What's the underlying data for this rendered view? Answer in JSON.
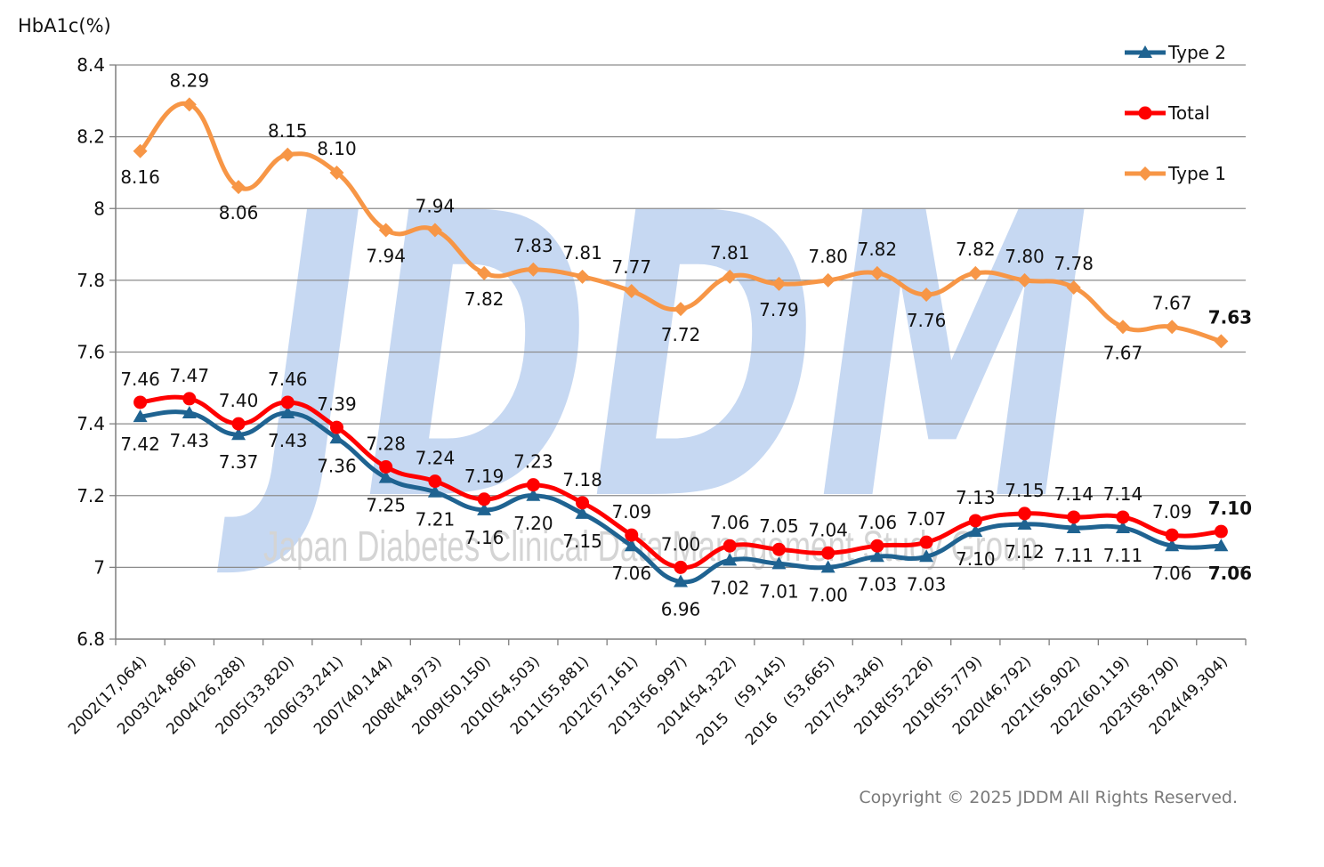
{
  "watermark": {
    "logo": "JDDM",
    "text": "Japan Diabetes Clinical Data Management Study Group"
  },
  "copyright": "Copyright © 2025 JDDM All Rights Reserved.",
  "chart_data": {
    "type": "line",
    "ylabel": "HbA1c(%)",
    "xlabel": "",
    "title": "",
    "ylim": [
      6.8,
      8.4
    ],
    "yticks": [
      "6.8",
      "7",
      "7.2",
      "7.4",
      "7.6",
      "7.8",
      "8",
      "8.2",
      "8.4"
    ],
    "grid": true,
    "legend_position": "top-right",
    "categories": [
      "2002(17,064)",
      "2003(24,866)",
      "2004(26,288)",
      "2005(33,820)",
      "2006(33,241)",
      "2007(40,144)",
      "2008(44,973)",
      "2009(50,150)",
      "2010(54,503)",
      "2011(55,881)",
      "2012(57,161)",
      "2013(56,997)",
      "2014(54,322)",
      "2015　(59,145)",
      "2016　(53,665)",
      "2017(54,346)",
      "2018(55,226)",
      "2019(55,779)",
      "2020(46,792)",
      "2021(56,902)",
      "2022(60,119)",
      "2023(58,790)",
      "2024(49,304)"
    ],
    "series": [
      {
        "name": "Type 2",
        "color": "#1f6391",
        "marker": "triangle",
        "values": [
          7.42,
          7.43,
          7.37,
          7.43,
          7.36,
          7.25,
          7.21,
          7.16,
          7.2,
          7.15,
          7.06,
          6.96,
          7.02,
          7.01,
          7.0,
          7.03,
          7.03,
          7.1,
          7.12,
          7.11,
          7.11,
          7.06,
          7.06
        ],
        "labels": [
          "7.42",
          "7.43",
          "7.37",
          "7.43",
          "7.36",
          "7.25",
          "7.21",
          "7.16",
          "7.20",
          "7.15",
          "7.06",
          "6.96",
          "7.02",
          "7.01",
          "7.00",
          "7.03",
          "7.03",
          "7.10",
          "7.12",
          "7.11",
          "7.11",
          "7.06",
          "7.06"
        ]
      },
      {
        "name": "Total",
        "color": "#ff0000",
        "marker": "circle",
        "values": [
          7.46,
          7.47,
          7.4,
          7.46,
          7.39,
          7.28,
          7.24,
          7.19,
          7.23,
          7.18,
          7.09,
          7.0,
          7.06,
          7.05,
          7.04,
          7.06,
          7.07,
          7.13,
          7.15,
          7.14,
          7.14,
          7.09,
          7.1
        ],
        "labels": [
          "7.46",
          "7.47",
          "7.40",
          "7.46",
          "7.39",
          "7.28",
          "7.24",
          "7.19",
          "7.23",
          "7.18",
          "7.09",
          "7.00",
          "7.06",
          "7.05",
          "7.04",
          "7.06",
          "7.07",
          "7.13",
          "7.15",
          "7.14",
          "7.14",
          "7.09",
          "7.10"
        ]
      },
      {
        "name": "Type 1",
        "color": "#f79646",
        "marker": "diamond",
        "values": [
          8.16,
          8.29,
          8.06,
          8.15,
          8.1,
          7.94,
          7.94,
          7.82,
          7.83,
          7.81,
          7.77,
          7.72,
          7.81,
          7.79,
          7.8,
          7.82,
          7.76,
          7.82,
          7.8,
          7.78,
          7.67,
          7.67,
          7.63
        ],
        "labels": [
          "8.16",
          "8.29",
          "8.06",
          "8.15",
          "8.10",
          "7.94",
          "7.94",
          "7.82",
          "7.83",
          "7.81",
          "7.77",
          "7.72",
          "7.81",
          "7.79",
          "7.80",
          "7.82",
          "7.76",
          "7.82",
          "7.80",
          "7.78",
          "7.67",
          "7.67",
          "7.63"
        ]
      }
    ]
  }
}
